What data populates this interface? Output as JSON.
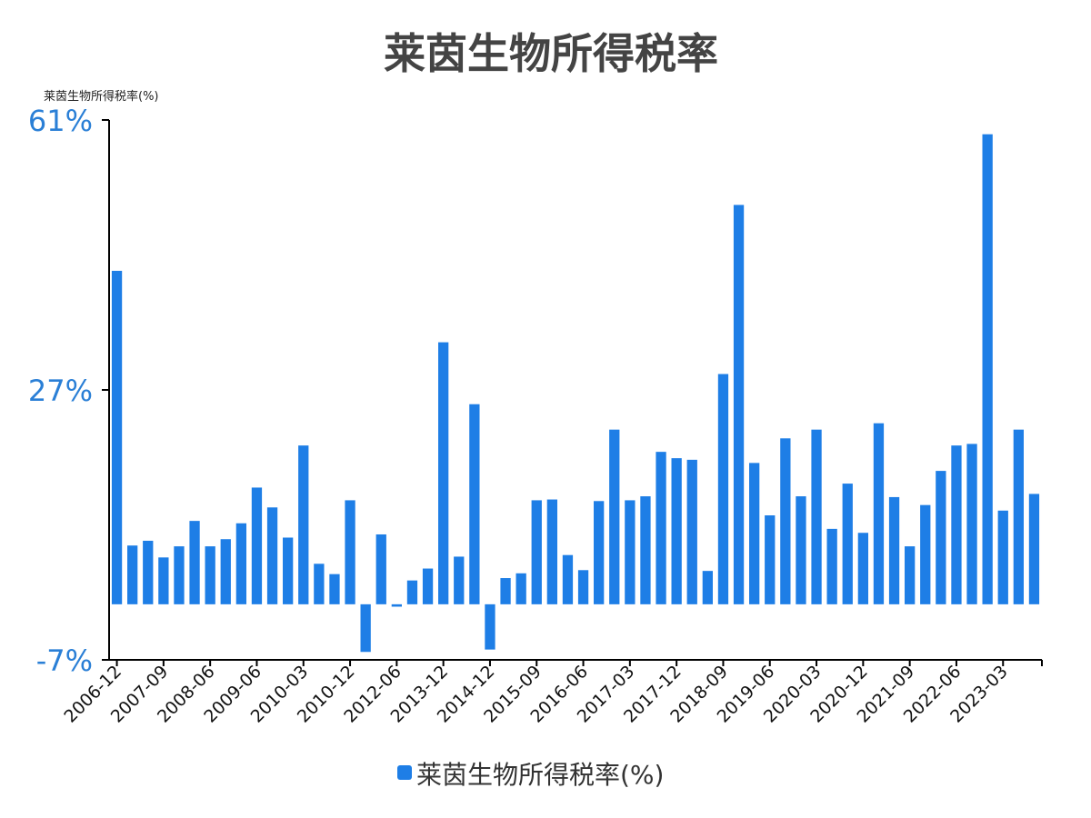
{
  "colors": {
    "bar": "#1e7ee6",
    "axis": "#000000",
    "ytick": "#2a7fd6",
    "title": "#444444"
  },
  "chart_data": {
    "type": "bar",
    "title": "莱茵生物所得税率",
    "unit_label": "莱茵生物所得税率(%)",
    "legend": {
      "label": "莱茵生物所得税率(%)",
      "position": "bottom-center"
    },
    "grid": false,
    "ylim": [
      -7,
      61
    ],
    "y_ticks": [
      61,
      27,
      -7
    ],
    "y_tick_labels": [
      "61%",
      "27%",
      "-7%"
    ],
    "x_tick_labels": [
      "2006-12",
      "2007-09",
      "2008-06",
      "2009-06",
      "2010-03",
      "2010-12",
      "2012-06",
      "2013-12",
      "2014-12",
      "2015-09",
      "2016-06",
      "2017-03",
      "2017-12",
      "2018-09",
      "2019-06",
      "2020-03",
      "2020-12",
      "2021-09",
      "2022-06",
      "2023-03"
    ],
    "series": [
      {
        "name": "莱茵生物所得税率(%)",
        "values": [
          42.0,
          7.4,
          8.0,
          5.9,
          7.3,
          10.5,
          7.3,
          8.2,
          10.2,
          14.7,
          12.2,
          8.4,
          20.0,
          5.1,
          3.8,
          13.1,
          -6.0,
          8.8,
          -0.3,
          3.0,
          4.5,
          33.0,
          6.0,
          25.2,
          -5.7,
          3.3,
          3.9,
          13.1,
          13.2,
          6.2,
          4.3,
          13.0,
          22.0,
          13.1,
          13.6,
          19.2,
          18.4,
          18.2,
          4.2,
          29.0,
          50.3,
          17.8,
          11.2,
          20.9,
          13.6,
          22.0,
          9.5,
          15.2,
          9.0,
          22.8,
          13.5,
          7.3,
          12.5,
          16.8,
          20.0,
          20.2,
          59.2,
          11.8,
          22.0,
          13.9
        ]
      }
    ],
    "x_tick_indices": [
      0,
      3,
      6,
      9,
      12,
      15,
      18,
      21,
      24,
      27,
      30,
      33,
      36,
      39,
      42,
      45,
      48,
      51,
      54,
      57
    ]
  }
}
